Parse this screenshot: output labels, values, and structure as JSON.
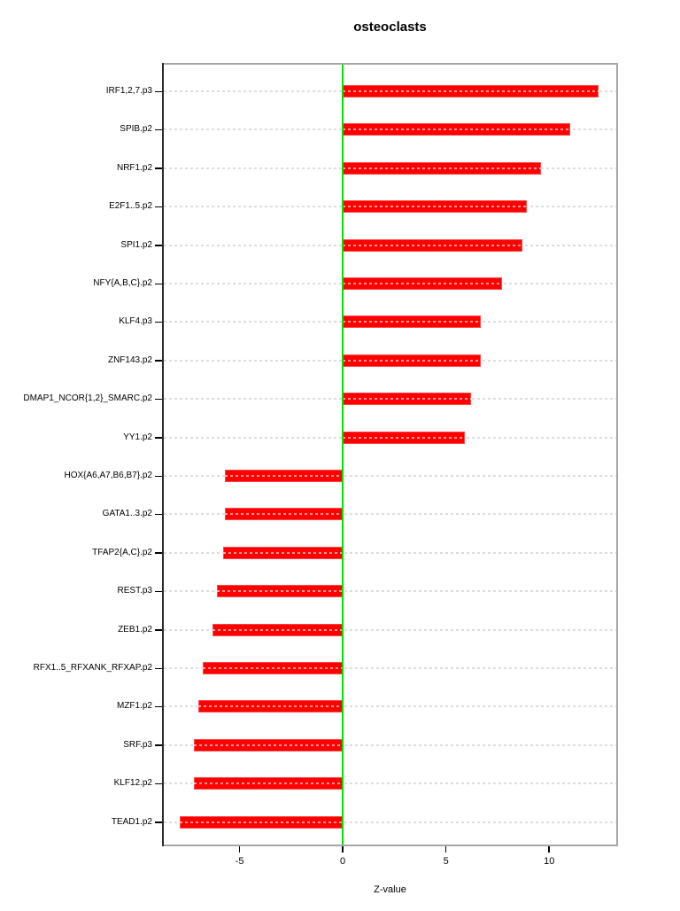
{
  "title": "osteoclasts",
  "chart_data": {
    "type": "bar",
    "orientation": "horizontal",
    "title": "osteoclasts",
    "xlabel": "Z-value",
    "ylabel": "",
    "categories": [
      "IRF1,2,7.p3",
      "SPIB.p2",
      "NRF1.p2",
      "E2F1..5.p2",
      "SPI1.p2",
      "NFY{A,B,C}.p2",
      "KLF4.p3",
      "ZNF143.p2",
      "DMAP1_NCOR{1,2}_SMARC.p2",
      "YY1.p2",
      "HOX{A6,A7,B6,B7}.p2",
      "GATA1..3.p2",
      "TFAP2{A,C}.p2",
      "REST.p3",
      "ZEB1.p2",
      "RFX1..5_RFXANK_RFXAP.p2",
      "MZF1.p2",
      "SRF.p3",
      "KLF12.p2",
      "TEAD1.p2"
    ],
    "values": [
      12.4,
      11.0,
      9.6,
      8.9,
      8.7,
      7.7,
      6.7,
      6.7,
      6.2,
      5.9,
      -5.7,
      -5.7,
      -5.8,
      -6.1,
      -6.3,
      -6.8,
      -7.0,
      -7.2,
      -7.2,
      -7.9
    ],
    "x_ticks": [
      -5,
      0,
      5,
      10
    ],
    "xlim": [
      -8.67,
      13.25
    ],
    "grid": true,
    "colors": {
      "bar": "#ff0000",
      "zero_line": "#00e100",
      "grid": "#dcdcdc",
      "box_border": "#a6a6a6",
      "axis": "#000000"
    }
  }
}
